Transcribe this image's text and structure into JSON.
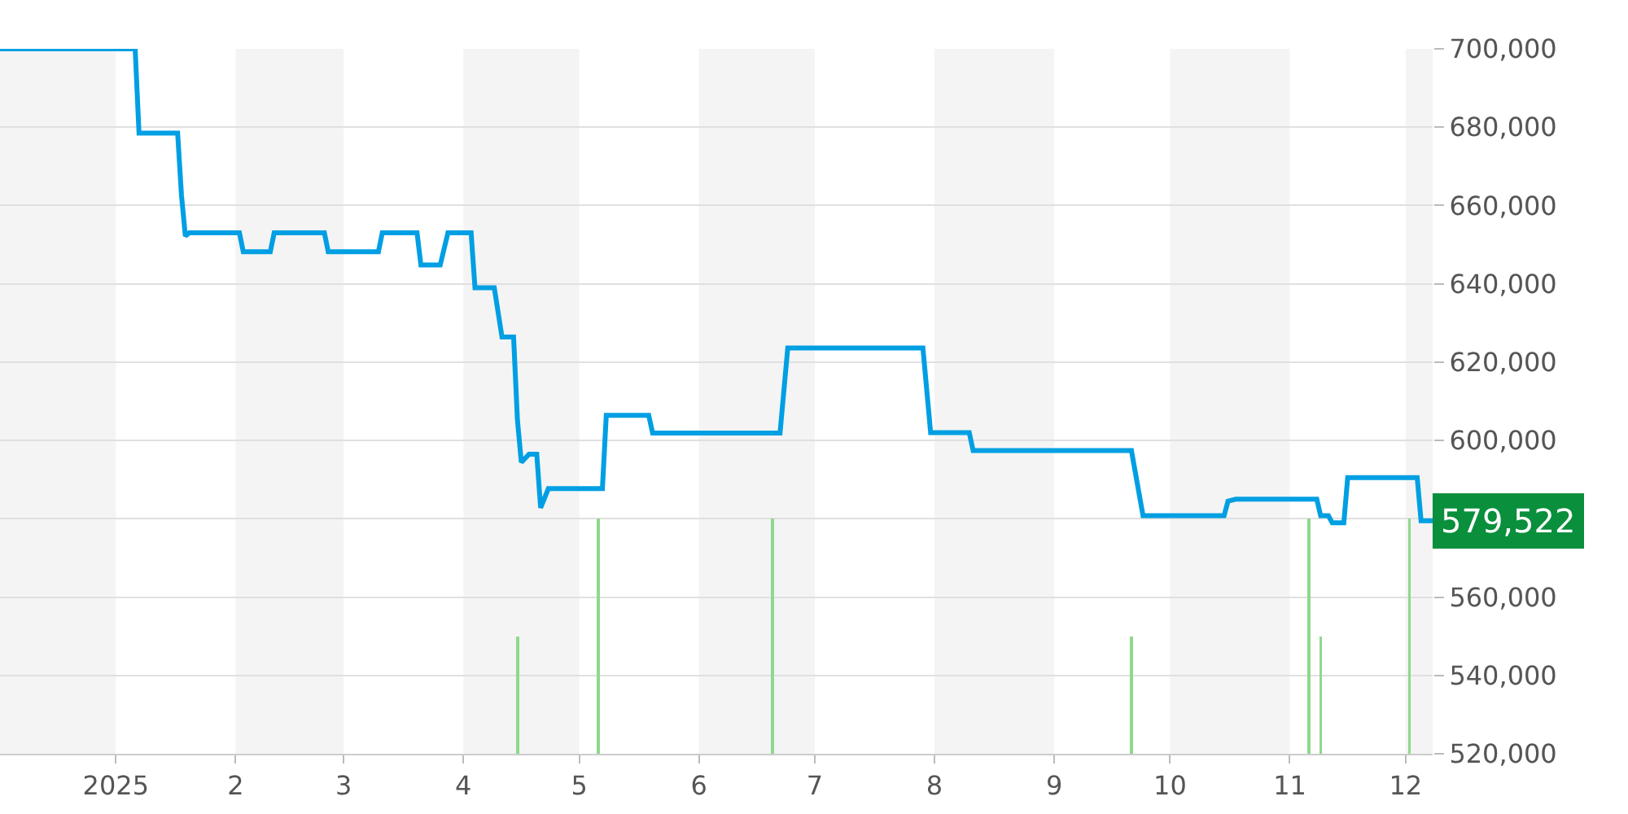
{
  "chart_data": {
    "type": "line",
    "x": [
      "2024-12-02",
      "2025-01-06",
      "2025-01-07",
      "2025-01-17",
      "2025-01-18",
      "2025-01-19",
      "2025-01-20",
      "2025-02-02",
      "2025-02-03",
      "2025-02-10",
      "2025-02-11",
      "2025-02-24",
      "2025-02-25",
      "2025-03-10",
      "2025-03-11",
      "2025-03-20",
      "2025-03-21",
      "2025-03-26",
      "2025-03-28",
      "2025-04-03",
      "2025-04-04",
      "2025-04-09",
      "2025-04-11",
      "2025-04-14",
      "2025-04-15",
      "2025-04-16",
      "2025-04-18",
      "2025-04-20",
      "2025-04-21",
      "2025-04-23",
      "2025-05-07",
      "2025-05-08",
      "2025-05-19",
      "2025-05-20",
      "2025-06-22",
      "2025-06-24",
      "2025-07-29",
      "2025-07-31",
      "2025-08-10",
      "2025-08-11",
      "2025-09-21",
      "2025-09-24",
      "2025-10-15",
      "2025-10-16",
      "2025-10-18",
      "2025-11-08",
      "2025-11-09",
      "2025-11-11",
      "2025-11-12",
      "2025-11-15",
      "2025-11-16",
      "2025-12-04",
      "2025-12-05",
      "2025-12-08"
    ],
    "series": [
      {
        "color": "#009fe3",
        "values": [
          700000,
          700000,
          678500,
          678500,
          662600,
          652200,
          653000,
          653000,
          648200,
          648200,
          653000,
          653000,
          648200,
          648200,
          653000,
          653000,
          644800,
          644800,
          653000,
          653000,
          639000,
          639000,
          626400,
          626400,
          605200,
          594400,
          596500,
          596500,
          582800,
          587700,
          587700,
          606400,
          606400,
          601900,
          601900,
          623600,
          623600,
          602000,
          602000,
          597400,
          597400,
          580800,
          580800,
          584500,
          585000,
          585000,
          580800,
          580800,
          579000,
          579000,
          590500,
          590500,
          579522,
          579522
        ]
      },
      {
        "type": "bar",
        "color": "#8ed88e",
        "x": [
          "2025-04-15",
          "2025-05-06",
          "2025-06-20",
          "2025-09-21",
          "2025-11-06",
          "2025-11-09",
          "2025-12-02"
        ],
        "values": [
          550000,
          580000,
          580000,
          550000,
          580000,
          550000,
          580000
        ]
      }
    ],
    "xlim": [
      "2024-12-02",
      "2025-12-08"
    ],
    "xticks": [
      {
        "value": "2025-01-01",
        "label": "2025"
      },
      {
        "value": "2025-02-01",
        "label": "2"
      },
      {
        "value": "2025-03-01",
        "label": "3"
      },
      {
        "value": "2025-04-01",
        "label": "4"
      },
      {
        "value": "2025-05-01",
        "label": "5"
      },
      {
        "value": "2025-06-01",
        "label": "6"
      },
      {
        "value": "2025-07-01",
        "label": "7"
      },
      {
        "value": "2025-08-01",
        "label": "8"
      },
      {
        "value": "2025-09-01",
        "label": "9"
      },
      {
        "value": "2025-10-01",
        "label": "10"
      },
      {
        "value": "2025-11-01",
        "label": "11"
      },
      {
        "value": "2025-12-01",
        "label": "12"
      }
    ],
    "ylim": [
      520000,
      700000
    ],
    "yticks": [
      {
        "value": 520000,
        "label": "520,000"
      },
      {
        "value": 540000,
        "label": "540,000"
      },
      {
        "value": 560000,
        "label": "560,000"
      },
      {
        "value": 580000,
        "label": null
      },
      {
        "value": 600000,
        "label": "600,000"
      },
      {
        "value": 620000,
        "label": "620,000"
      },
      {
        "value": 640000,
        "label": "640,000"
      },
      {
        "value": 660000,
        "label": "660,000"
      },
      {
        "value": 680000,
        "label": "680,000"
      },
      {
        "value": 700000,
        "label": "700,000"
      }
    ],
    "bands": [
      {
        "axis": "x",
        "from": "2024-12-02",
        "to": "2025-01-01",
        "color": "#f4f4f4"
      },
      {
        "axis": "x",
        "from": "2025-02-01",
        "to": "2025-03-01",
        "color": "#f4f4f4"
      },
      {
        "axis": "x",
        "from": "2025-04-01",
        "to": "2025-05-01",
        "color": "#f4f4f4"
      },
      {
        "axis": "x",
        "from": "2025-06-01",
        "to": "2025-07-01",
        "color": "#f4f4f4"
      },
      {
        "axis": "x",
        "from": "2025-08-01",
        "to": "2025-09-01",
        "color": "#f4f4f4"
      },
      {
        "axis": "x",
        "from": "2025-10-01",
        "to": "2025-11-01",
        "color": "#f4f4f4"
      },
      {
        "axis": "x",
        "from": "2025-12-01",
        "to": "2025-12-08",
        "color": "#f4f4f4"
      }
    ],
    "annotations": [
      {
        "text": "579,522",
        "x": "2025-12-08",
        "y": 579522
      }
    ],
    "grid": "y",
    "marker": "none",
    "line_style": "solid"
  }
}
